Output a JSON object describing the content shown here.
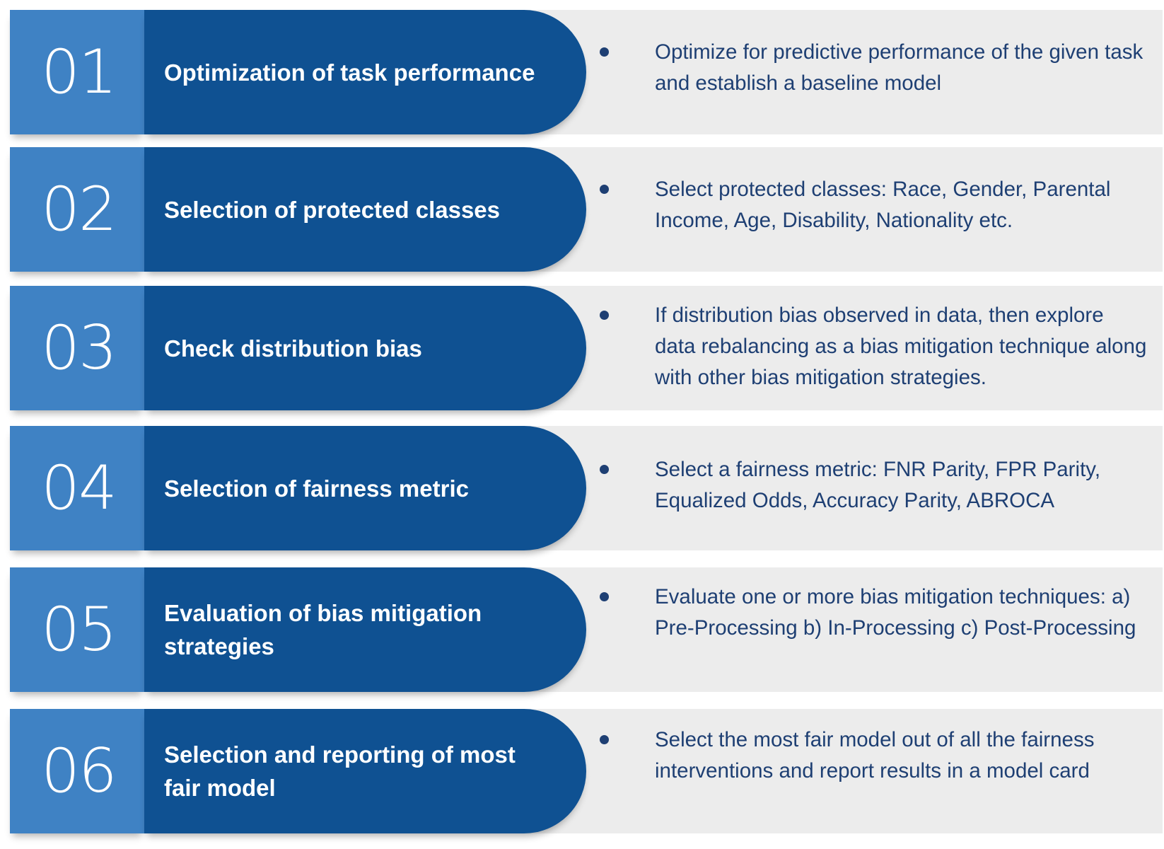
{
  "steps": [
    {
      "number": "01",
      "title": "Optimization of task performance",
      "description": "Optimize for predictive performance of the given task and establish a baseline model"
    },
    {
      "number": "02",
      "title": "Selection of protected classes",
      "description": "Select protected classes: Race, Gender, Parental Income, Age, Disability, Nationality etc."
    },
    {
      "number": "03",
      "title": "Check distribution bias",
      "description": "If distribution bias observed in data, then explore data rebalancing as a bias mitigation technique along with other bias mitigation strategies."
    },
    {
      "number": "04",
      "title": "Selection of fairness metric",
      "description": "Select a fairness metric: FNR Parity, FPR Parity, Equalized Odds, Accuracy Parity, ABROCA"
    },
    {
      "number": "05",
      "title": "Evaluation of bias mitigation strategies",
      "description": "Evaluate one or more bias mitigation techniques: a) Pre-Processing b) In-Processing c) Post-Processing"
    },
    {
      "number": "06",
      "title": "Selection and reporting of most fair model",
      "description": "Select the most fair model out of all the fairness interventions and report results in a model card"
    }
  ],
  "colors": {
    "number_box": "#3f82c4",
    "title_pill": "#0f5192",
    "row_background": "#ececec",
    "description_text": "#1e3f73"
  }
}
